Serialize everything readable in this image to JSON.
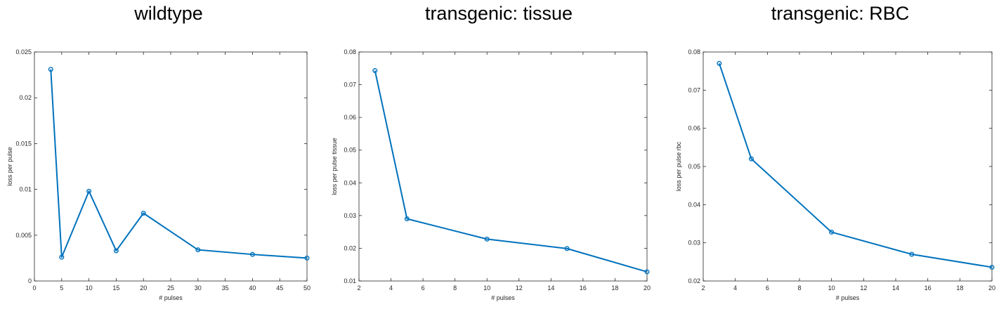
{
  "chart_data": [
    {
      "type": "line",
      "title": "wildtype",
      "xlabel": "# pulses",
      "ylabel": "loss per pulse",
      "xlim": [
        0,
        50
      ],
      "ylim": [
        0,
        0.025
      ],
      "xticks": [
        0,
        5,
        10,
        15,
        20,
        25,
        30,
        35,
        40,
        45,
        50
      ],
      "yticks": [
        0,
        0.005,
        0.01,
        0.015,
        0.02,
        0.025
      ],
      "xtick_labels": [
        "0",
        "5",
        "10",
        "15",
        "20",
        "25",
        "30",
        "35",
        "40",
        "45",
        "50"
      ],
      "ytick_labels": [
        "0",
        "0.005",
        "0.01",
        "0.015",
        "0.02",
        "0.025"
      ],
      "x": [
        3,
        5,
        10,
        15,
        20,
        30,
        40,
        50
      ],
      "y": [
        0.0231,
        0.0026,
        0.0098,
        0.0033,
        0.0074,
        0.0034,
        0.0029,
        0.0025
      ],
      "color": "#0072BD",
      "marker": "circle",
      "grid": false
    },
    {
      "type": "line",
      "title": "transgenic: tissue",
      "xlabel": "# pulses",
      "ylabel": "loss per pulse tissue",
      "xlim": [
        2,
        20
      ],
      "ylim": [
        0.01,
        0.08
      ],
      "xticks": [
        2,
        4,
        6,
        8,
        10,
        12,
        14,
        16,
        18,
        20
      ],
      "yticks": [
        0.01,
        0.02,
        0.03,
        0.04,
        0.05,
        0.06,
        0.07,
        0.08
      ],
      "xtick_labels": [
        "2",
        "4",
        "6",
        "8",
        "10",
        "12",
        "14",
        "16",
        "18",
        "20"
      ],
      "ytick_labels": [
        "0.01",
        "0.02",
        "0.03",
        "0.04",
        "0.05",
        "0.06",
        "0.07",
        "0.08"
      ],
      "x": [
        3,
        5,
        10,
        15,
        20
      ],
      "y": [
        0.0743,
        0.029,
        0.0228,
        0.0199,
        0.0128
      ],
      "color": "#0072BD",
      "marker": "circle",
      "grid": false
    },
    {
      "type": "line",
      "title": "transgenic: RBC",
      "xlabel": "# pulses",
      "ylabel": "loss per pulse rbc",
      "xlim": [
        2,
        20
      ],
      "ylim": [
        0.02,
        0.08
      ],
      "xticks": [
        2,
        4,
        6,
        8,
        10,
        12,
        14,
        16,
        18,
        20
      ],
      "yticks": [
        0.02,
        0.03,
        0.04,
        0.05,
        0.06,
        0.07,
        0.08
      ],
      "xtick_labels": [
        "2",
        "4",
        "6",
        "8",
        "10",
        "12",
        "14",
        "16",
        "18",
        "20"
      ],
      "ytick_labels": [
        "0.02",
        "0.03",
        "0.04",
        "0.05",
        "0.06",
        "0.07",
        "0.08"
      ],
      "x": [
        3,
        5,
        10,
        15,
        20
      ],
      "y": [
        0.077,
        0.052,
        0.0328,
        0.027,
        0.0236
      ],
      "color": "#0072BD",
      "marker": "circle",
      "grid": false
    }
  ]
}
